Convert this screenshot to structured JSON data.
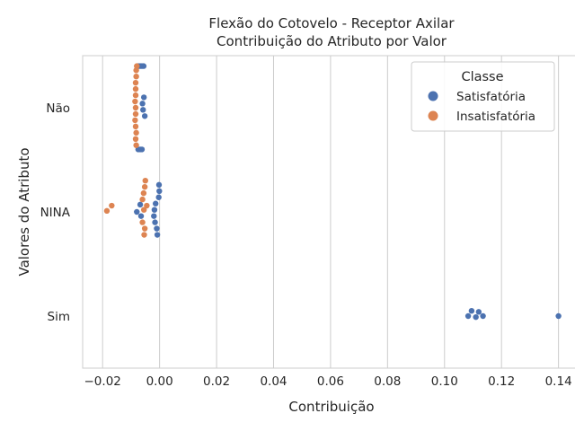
{
  "chart_data": {
    "type": "scatter",
    "subtype": "swarm",
    "title_line1": "Flexão do Cotovelo - Receptor Axilar",
    "title_line2": "Contribuição do Atributo por Valor",
    "xlabel": "Contribuição",
    "ylabel": "Valores do Atributo",
    "xlim": [
      -0.027,
      0.148
    ],
    "x_ticks": [
      -0.02,
      0.0,
      0.02,
      0.04,
      0.06,
      0.08,
      0.1,
      0.12,
      0.14
    ],
    "x_tick_labels": [
      "−0.02",
      "0.00",
      "0.02",
      "0.04",
      "0.06",
      "0.08",
      "0.10",
      "0.12",
      "0.14"
    ],
    "categories": [
      "Não",
      "NINA",
      "Sim"
    ],
    "grid": true,
    "legend": {
      "title": "Classe",
      "placement": "top-right",
      "entries": [
        "Satisfatória",
        "Insatisfatória"
      ]
    },
    "series": [
      {
        "name": "Satisfatória",
        "color": "#4c72b0",
        "points": [
          {
            "category": "Não",
            "x": -0.0075,
            "offset": -0.4
          },
          {
            "category": "Não",
            "x": -0.0068,
            "offset": -0.4
          },
          {
            "category": "Não",
            "x": -0.0062,
            "offset": -0.4
          },
          {
            "category": "Não",
            "x": -0.0056,
            "offset": -0.4
          },
          {
            "category": "Não",
            "x": -0.0055,
            "offset": -0.1
          },
          {
            "category": "Não",
            "x": -0.006,
            "offset": -0.04
          },
          {
            "category": "Não",
            "x": -0.0058,
            "offset": 0.02
          },
          {
            "category": "Não",
            "x": -0.0052,
            "offset": 0.08
          },
          {
            "category": "Não",
            "x": -0.0075,
            "offset": 0.4
          },
          {
            "category": "Não",
            "x": -0.0068,
            "offset": 0.4
          },
          {
            "category": "Não",
            "x": -0.0062,
            "offset": 0.4
          },
          {
            "category": "NINA",
            "x": -0.0002,
            "offset": -0.26
          },
          {
            "category": "NINA",
            "x": -0.0001,
            "offset": -0.2
          },
          {
            "category": "NINA",
            "x": -0.0003,
            "offset": -0.14
          },
          {
            "category": "NINA",
            "x": -0.0014,
            "offset": -0.08
          },
          {
            "category": "NINA",
            "x": -0.0018,
            "offset": -0.02
          },
          {
            "category": "NINA",
            "x": -0.0068,
            "offset": -0.07
          },
          {
            "category": "NINA",
            "x": -0.008,
            "offset": 0.0
          },
          {
            "category": "NINA",
            "x": -0.0065,
            "offset": 0.04
          },
          {
            "category": "NINA",
            "x": -0.002,
            "offset": 0.04
          },
          {
            "category": "NINA",
            "x": -0.0016,
            "offset": 0.1
          },
          {
            "category": "NINA",
            "x": -0.001,
            "offset": 0.16
          },
          {
            "category": "NINA",
            "x": -0.0008,
            "offset": 0.22
          },
          {
            "category": "Sim",
            "x": 0.1095,
            "offset": -0.05
          },
          {
            "category": "Sim",
            "x": 0.112,
            "offset": -0.04
          },
          {
            "category": "Sim",
            "x": 0.1083,
            "offset": 0.0
          },
          {
            "category": "Sim",
            "x": 0.111,
            "offset": 0.01
          },
          {
            "category": "Sim",
            "x": 0.1135,
            "offset": 0.0
          },
          {
            "category": "Sim",
            "x": 0.14,
            "offset": 0.0
          }
        ]
      },
      {
        "name": "Insatisfatória",
        "color": "#dd8452",
        "points": [
          {
            "category": "Não",
            "x": -0.008,
            "offset": -0.4
          },
          {
            "category": "Não",
            "x": -0.0082,
            "offset": -0.36
          },
          {
            "category": "Não",
            "x": -0.0082,
            "offset": -0.3
          },
          {
            "category": "Não",
            "x": -0.0084,
            "offset": -0.24
          },
          {
            "category": "Não",
            "x": -0.0084,
            "offset": -0.18
          },
          {
            "category": "Não",
            "x": -0.0084,
            "offset": -0.12
          },
          {
            "category": "Não",
            "x": -0.0086,
            "offset": -0.06
          },
          {
            "category": "Não",
            "x": -0.0084,
            "offset": 0.0
          },
          {
            "category": "Não",
            "x": -0.0084,
            "offset": 0.06
          },
          {
            "category": "Não",
            "x": -0.0086,
            "offset": 0.12
          },
          {
            "category": "Não",
            "x": -0.0084,
            "offset": 0.18
          },
          {
            "category": "Não",
            "x": -0.0082,
            "offset": 0.24
          },
          {
            "category": "Não",
            "x": -0.0084,
            "offset": 0.3
          },
          {
            "category": "Não",
            "x": -0.0082,
            "offset": 0.36
          },
          {
            "category": "NINA",
            "x": -0.005,
            "offset": -0.3
          },
          {
            "category": "NINA",
            "x": -0.0052,
            "offset": -0.24
          },
          {
            "category": "NINA",
            "x": -0.0056,
            "offset": -0.18
          },
          {
            "category": "NINA",
            "x": -0.006,
            "offset": -0.12
          },
          {
            "category": "NINA",
            "x": -0.0045,
            "offset": -0.06
          },
          {
            "category": "NINA",
            "x": -0.0055,
            "offset": -0.02
          },
          {
            "category": "NINA",
            "x": -0.0168,
            "offset": -0.06
          },
          {
            "category": "NINA",
            "x": -0.0185,
            "offset": -0.01
          },
          {
            "category": "NINA",
            "x": -0.006,
            "offset": 0.1
          },
          {
            "category": "NINA",
            "x": -0.0052,
            "offset": 0.16
          },
          {
            "category": "NINA",
            "x": -0.0054,
            "offset": 0.22
          }
        ]
      }
    ]
  }
}
